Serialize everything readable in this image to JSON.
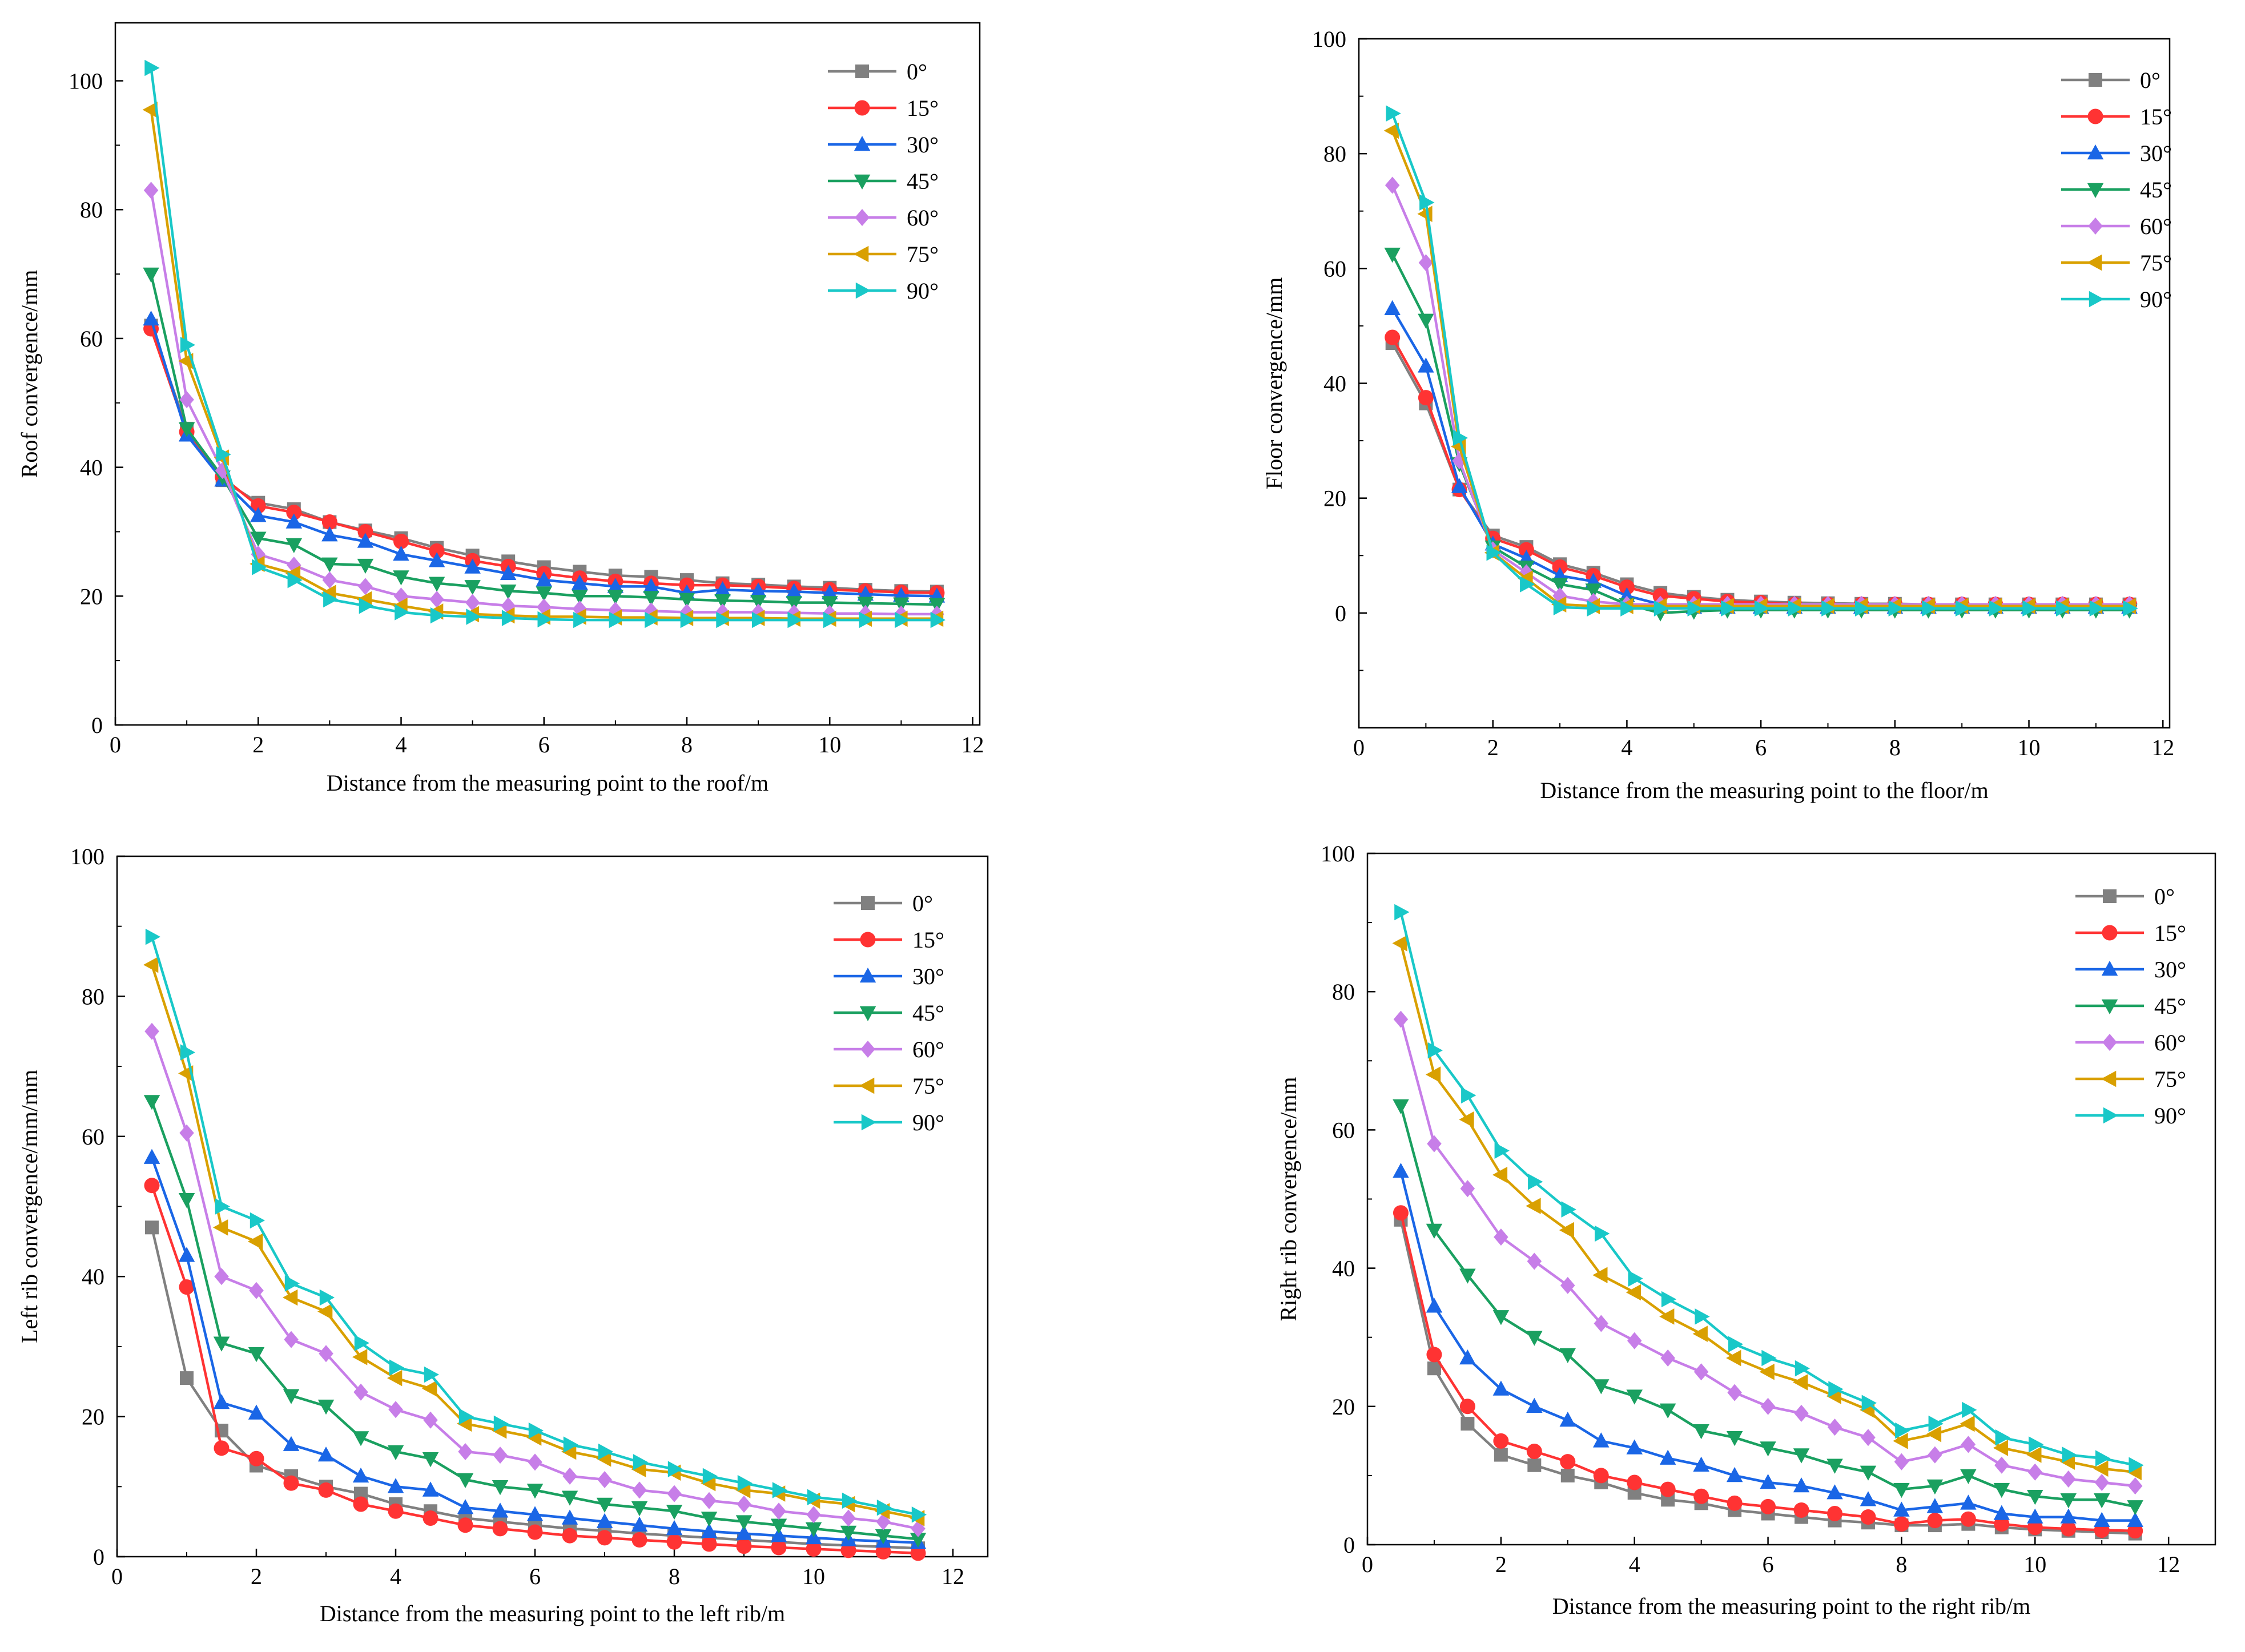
{
  "chart_data": [
    {
      "type": "line",
      "xlabel": "Distance from the measuring point to the roof/m",
      "ylabel": "Roof convergence/mm",
      "xlim": [
        0,
        12.1
      ],
      "ylim": [
        0,
        109
      ],
      "xticks": [
        "0",
        "2",
        "4",
        "6",
        "8",
        "10",
        "12"
      ],
      "yticks": [
        "0",
        "20",
        "40",
        "60",
        "80",
        "100"
      ],
      "legend_position": "top-right",
      "x": [
        0.5,
        1.0,
        1.5,
        2.0,
        2.5,
        3.0,
        3.5,
        4.0,
        4.5,
        5.0,
        5.5,
        6.0,
        6.5,
        7.0,
        7.5,
        8.0,
        8.5,
        9.0,
        9.5,
        10.0,
        10.5,
        11.0,
        11.5
      ],
      "series": [
        {
          "name": "0°",
          "values": [
            62,
            46,
            38,
            34.5,
            33.5,
            31.5,
            30.2,
            29,
            27.5,
            26.3,
            25.4,
            24.5,
            23.8,
            23.2,
            23,
            22.5,
            22,
            21.8,
            21.5,
            21.3,
            21,
            20.8,
            20.7
          ]
        },
        {
          "name": "15°",
          "values": [
            61.5,
            45.5,
            38.5,
            34,
            33,
            31.5,
            30,
            28.5,
            27,
            25.5,
            24.6,
            23.5,
            22.8,
            22.3,
            22,
            21.7,
            21.7,
            21.5,
            21.2,
            21,
            20.8,
            20.6,
            20.5
          ]
        },
        {
          "name": "30°",
          "values": [
            63,
            45,
            38,
            32.5,
            31.5,
            29.5,
            28.5,
            26.5,
            25.5,
            24.5,
            23.5,
            22.5,
            22,
            21.5,
            21.5,
            20.5,
            21,
            20.8,
            20.7,
            20.5,
            20.3,
            20.1,
            20
          ]
        },
        {
          "name": "45°",
          "values": [
            70,
            46,
            38.5,
            29,
            28,
            25,
            24.8,
            23,
            22,
            21.5,
            20.8,
            20.5,
            20,
            20,
            19.8,
            19.5,
            19.3,
            19.2,
            19,
            19,
            18.9,
            18.8,
            18.7
          ]
        },
        {
          "name": "60°",
          "values": [
            83,
            50.5,
            39.5,
            26.5,
            24.8,
            22.5,
            21.5,
            20,
            19.5,
            19,
            18.5,
            18.3,
            18,
            17.8,
            17.7,
            17.5,
            17.5,
            17.5,
            17.4,
            17.3,
            17.3,
            17.2,
            17.2
          ]
        },
        {
          "name": "75°",
          "values": [
            95.5,
            56.5,
            41.5,
            25,
            23.5,
            20.5,
            19.5,
            18.5,
            17.6,
            17.2,
            17,
            16.8,
            16.8,
            16.7,
            16.7,
            16.6,
            16.6,
            16.6,
            16.5,
            16.5,
            16.5,
            16.5,
            16.5
          ]
        },
        {
          "name": "90°",
          "values": [
            102,
            59,
            42,
            24.5,
            22.5,
            19.5,
            18.5,
            17.5,
            17,
            16.8,
            16.6,
            16.4,
            16.3,
            16.3,
            16.3,
            16.3,
            16.3,
            16.3,
            16.3,
            16.3,
            16.3,
            16.3,
            16.3
          ]
        }
      ]
    },
    {
      "type": "line",
      "xlabel": "Distance from the measuring point to the floor/m",
      "ylabel": "Floor convergence/mm",
      "xlim": [
        0,
        12.1
      ],
      "ylim": [
        -20,
        100
      ],
      "xticks": [
        "0",
        "2",
        "4",
        "6",
        "8",
        "10",
        "12"
      ],
      "yticks": [
        "0",
        "20",
        "40",
        "60",
        "80",
        "100"
      ],
      "legend_position": "top-right",
      "x": [
        0.5,
        1.0,
        1.5,
        2.0,
        2.5,
        3.0,
        3.5,
        4.0,
        4.5,
        5.0,
        5.5,
        6.0,
        6.5,
        7.0,
        7.5,
        8.0,
        8.5,
        9.0,
        9.5,
        10.0,
        10.5,
        11.0,
        11.5
      ],
      "series": [
        {
          "name": "0°",
          "values": [
            47,
            36.5,
            21.5,
            13.5,
            11.5,
            8.5,
            7,
            5,
            3.5,
            2.8,
            2.3,
            2,
            1.8,
            1.7,
            1.6,
            1.6,
            1.5,
            1.5,
            1.5,
            1.5,
            1.5,
            1.5,
            1.5
          ]
        },
        {
          "name": "15°",
          "values": [
            48,
            37.5,
            21.5,
            13,
            11,
            8,
            6.5,
            4.5,
            3,
            2.5,
            2,
            1.8,
            1.5,
            1.5,
            1.5,
            1.5,
            1.5,
            1.5,
            1.5,
            1.5,
            1.5,
            1.5,
            1.5
          ]
        },
        {
          "name": "30°",
          "values": [
            53,
            43,
            22,
            12,
            9.5,
            6.5,
            5.5,
            3,
            1.5,
            1,
            1,
            1,
            1,
            1,
            1,
            1,
            1,
            1,
            1,
            1,
            1,
            1,
            1
          ]
        },
        {
          "name": "45°",
          "values": [
            62.5,
            51,
            26,
            11.5,
            8,
            5,
            4,
            1.5,
            0,
            0.3,
            0.5,
            0.5,
            0.5,
            0.5,
            0.5,
            0.5,
            0.5,
            0.5,
            0.5,
            0.5,
            0.5,
            0.5,
            0.5
          ]
        },
        {
          "name": "60°",
          "values": [
            74.5,
            61,
            26.5,
            11,
            7,
            3,
            2,
            1.5,
            1.5,
            1.5,
            1.5,
            1.5,
            1.5,
            1.5,
            1.5,
            1.5,
            1.5,
            1.5,
            1.5,
            1.5,
            1.5,
            1.5,
            1.5
          ]
        },
        {
          "name": "75°",
          "values": [
            84,
            69.5,
            29,
            10.5,
            6,
            1.5,
            1.2,
            1.2,
            1.2,
            1.2,
            1.2,
            1.2,
            1.2,
            1.2,
            1.2,
            1.2,
            1.2,
            1.2,
            1.2,
            1.2,
            1.2,
            1.2,
            1.2
          ]
        },
        {
          "name": "90°",
          "values": [
            87,
            71.5,
            30.5,
            10.5,
            5,
            1,
            0.8,
            0.8,
            0.8,
            0.8,
            0.8,
            0.8,
            0.8,
            0.8,
            0.8,
            0.8,
            0.8,
            0.8,
            0.8,
            0.8,
            0.8,
            0.8,
            0.8
          ]
        }
      ]
    },
    {
      "type": "line",
      "xlabel": "Distance from the measuring point to the left rib/m",
      "ylabel": "Left rib convergence/mm/mm",
      "xlim": [
        0,
        12.5
      ],
      "ylim": [
        0,
        100
      ],
      "xticks": [
        "0",
        "2",
        "4",
        "6",
        "8",
        "10",
        "12"
      ],
      "yticks": [
        "0",
        "20",
        "40",
        "60",
        "80",
        "100"
      ],
      "legend_position": "top-right",
      "x": [
        0.5,
        1.0,
        1.5,
        2.0,
        2.5,
        3.0,
        3.5,
        4.0,
        4.5,
        5.0,
        5.5,
        6.0,
        6.5,
        7.0,
        7.5,
        8.0,
        8.5,
        9.0,
        9.5,
        10.0,
        10.5,
        11.0,
        11.5
      ],
      "series": [
        {
          "name": "0°",
          "values": [
            47,
            25.5,
            18,
            13,
            11.5,
            10,
            9,
            7.5,
            6.5,
            5.5,
            5,
            4.5,
            4,
            3.7,
            3.3,
            3,
            2.7,
            2.4,
            2.1,
            1.8,
            1.6,
            1.4,
            1.2
          ]
        },
        {
          "name": "15°",
          "values": [
            53,
            38.5,
            15.5,
            14,
            10.5,
            9.5,
            7.5,
            6.5,
            5.5,
            4.5,
            4,
            3.5,
            3,
            2.7,
            2.4,
            2.1,
            1.8,
            1.5,
            1.3,
            1.1,
            0.9,
            0.7,
            0.5
          ]
        },
        {
          "name": "30°",
          "values": [
            57,
            43,
            22,
            20.5,
            16,
            14.5,
            11.5,
            10,
            9.5,
            7,
            6.5,
            6,
            5.5,
            5,
            4.5,
            4,
            3.6,
            3.3,
            3,
            2.7,
            2.4,
            2.2,
            2
          ]
        },
        {
          "name": "45°",
          "values": [
            65,
            51,
            30.5,
            29,
            23,
            21.5,
            17,
            15,
            14,
            11,
            10,
            9.5,
            8.5,
            7.5,
            7,
            6.5,
            5.5,
            5,
            4.5,
            4,
            3.5,
            3,
            2.5
          ]
        },
        {
          "name": "60°",
          "values": [
            75,
            60.5,
            40,
            38,
            31,
            29,
            23.5,
            21,
            19.5,
            15,
            14.5,
            13.5,
            11.5,
            11,
            9.5,
            9,
            8,
            7.5,
            6.5,
            6,
            5.5,
            5,
            4
          ]
        },
        {
          "name": "75°",
          "values": [
            84.5,
            69,
            47,
            45,
            37,
            35,
            28.5,
            25.5,
            24,
            19,
            18,
            17,
            15,
            14,
            12.5,
            12,
            10.5,
            9.5,
            9,
            8,
            7.5,
            6.5,
            5.5
          ]
        },
        {
          "name": "90°",
          "values": [
            88.5,
            72,
            50,
            48,
            39,
            37,
            30.5,
            27,
            26,
            20,
            19,
            18,
            16,
            15,
            13.5,
            12.5,
            11.5,
            10.5,
            9.5,
            8.5,
            8,
            7,
            6
          ]
        }
      ]
    },
    {
      "type": "line",
      "xlabel": "Distance from the measuring point to the right rib/m",
      "ylabel": "Right rib convergence/mm",
      "xlim": [
        0,
        12.7
      ],
      "ylim": [
        0,
        100
      ],
      "xticks": [
        "0",
        "2",
        "4",
        "6",
        "8",
        "10",
        "12"
      ],
      "yticks": [
        "0",
        "20",
        "40",
        "60",
        "80",
        "100"
      ],
      "legend_position": "top-right",
      "x": [
        0.5,
        1.0,
        1.5,
        2.0,
        2.5,
        3.0,
        3.5,
        4.0,
        4.5,
        5.0,
        5.5,
        6.0,
        6.5,
        7.0,
        7.5,
        8.0,
        8.5,
        9.0,
        9.5,
        10.0,
        10.5,
        11.0,
        11.5
      ],
      "series": [
        {
          "name": "0°",
          "values": [
            47,
            25.5,
            17.5,
            13,
            11.5,
            10,
            9,
            7.5,
            6.5,
            6,
            5,
            4.5,
            4,
            3.5,
            3.2,
            2.8,
            2.8,
            3,
            2.5,
            2.2,
            2,
            1.8,
            1.6
          ]
        },
        {
          "name": "15°",
          "values": [
            48,
            27.5,
            20,
            15,
            13.5,
            12,
            10,
            9,
            8,
            7,
            6,
            5.5,
            5,
            4.5,
            4,
            3,
            3.5,
            3.7,
            3,
            2.5,
            2.3,
            2.1,
            2
          ]
        },
        {
          "name": "30°",
          "values": [
            54,
            34.5,
            27,
            22.5,
            20,
            18,
            15,
            14,
            12.5,
            11.5,
            10,
            9,
            8.5,
            7.5,
            6.5,
            5,
            5.5,
            6,
            4.5,
            4,
            4,
            3.5,
            3.5
          ]
        },
        {
          "name": "45°",
          "values": [
            63.5,
            45.5,
            39,
            33,
            30,
            27.5,
            23,
            21.5,
            19.5,
            16.5,
            15.5,
            14,
            13,
            11.5,
            10.5,
            8,
            8.5,
            10,
            8,
            7,
            6.5,
            6.5,
            5.5
          ]
        },
        {
          "name": "60°",
          "values": [
            76,
            58,
            51.5,
            44.5,
            41,
            37.5,
            32,
            29.5,
            27,
            25,
            22,
            20,
            19,
            17,
            15.5,
            12,
            13,
            14.5,
            11.5,
            10.5,
            9.5,
            9,
            8.5
          ]
        },
        {
          "name": "75°",
          "values": [
            87,
            68,
            61.5,
            53.5,
            49,
            45.5,
            39,
            36.5,
            33,
            30.5,
            27,
            25,
            23.5,
            21.5,
            19.5,
            15,
            16,
            17.5,
            14,
            13,
            12,
            11,
            10.5
          ]
        },
        {
          "name": "90°",
          "values": [
            91.5,
            71.5,
            65,
            57,
            52.5,
            48.5,
            45,
            38.5,
            35.5,
            33,
            29,
            27,
            25.5,
            22.5,
            20.5,
            16.5,
            17.5,
            19.5,
            15.5,
            14.5,
            13,
            12.5,
            11.5
          ]
        }
      ]
    }
  ],
  "series_styles": [
    {
      "color": "#808080",
      "marker": "square"
    },
    {
      "color": "#ff3333",
      "marker": "circle"
    },
    {
      "color": "#1a66e6",
      "marker": "triangle-up"
    },
    {
      "color": "#1aa060",
      "marker": "triangle-down"
    },
    {
      "color": "#c77ee8",
      "marker": "diamond"
    },
    {
      "color": "#d9a000",
      "marker": "triangle-left"
    },
    {
      "color": "#19c8c8",
      "marker": "triangle-right"
    }
  ]
}
